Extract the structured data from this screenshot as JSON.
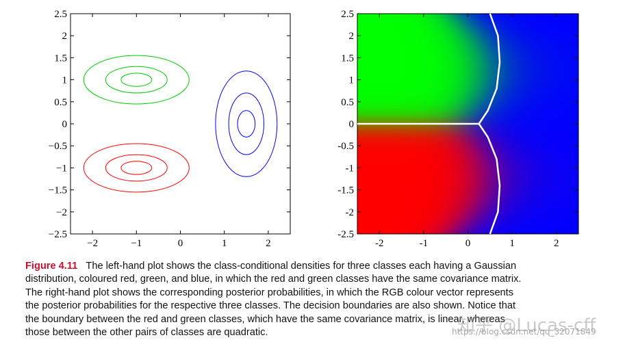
{
  "chart_data": [
    {
      "type": "contour",
      "xlim": [
        -2.5,
        2.5
      ],
      "ylim": [
        -2.5,
        2.5
      ],
      "xticks": [
        -2,
        -1,
        0,
        1,
        2
      ],
      "xtick_labels": [
        "−2",
        "−1",
        "0",
        "1",
        "2"
      ],
      "yticks": [
        2.5,
        2,
        1.5,
        1,
        0.5,
        0,
        -0.5,
        -1,
        -1.5,
        -2,
        -2.5
      ],
      "ytick_labels": [
        "2.5",
        "2",
        "1.5",
        "1",
        "0.5",
        "0",
        "−0.5",
        "−1",
        "−1.5",
        "−2",
        "−2.5"
      ],
      "series": [
        {
          "color": "#00cc00",
          "center": [
            -1.0,
            1.0
          ],
          "semi_axes": [
            [
              0.35,
              0.15
            ],
            [
              0.7,
              0.3
            ],
            [
              1.2,
              0.55
            ]
          ]
        },
        {
          "color": "#ff0000",
          "center": [
            -1.0,
            -1.0
          ],
          "semi_axes": [
            [
              0.35,
              0.15
            ],
            [
              0.7,
              0.3
            ],
            [
              1.2,
              0.55
            ]
          ]
        },
        {
          "color": "#0000ff",
          "center": [
            1.5,
            0.0
          ],
          "semi_axes": [
            [
              0.2,
              0.3
            ],
            [
              0.4,
              0.7
            ],
            [
              0.7,
              1.2
            ]
          ]
        }
      ]
    },
    {
      "type": "heatmap",
      "xlim": [
        -2.5,
        2.5
      ],
      "ylim": [
        -2.5,
        2.5
      ],
      "xticks": [
        -2,
        -1,
        0,
        1,
        2
      ],
      "xtick_labels": [
        "-2",
        "-1",
        "0",
        "1",
        "2"
      ],
      "yticks": [
        2.5,
        2,
        1.5,
        1,
        0.5,
        0,
        -0.5,
        -1,
        -1.5,
        -2,
        -2.5
      ],
      "ytick_labels": [
        "2.5",
        "2",
        "1.5",
        "1",
        "0.5",
        "0",
        "-0.5",
        "-1",
        "-1.5",
        "-2",
        "-2.5"
      ],
      "colors": {
        "red": "#ff0000",
        "green": "#00ff00",
        "blue": "#0000ff",
        "boundary": "#ffffff"
      },
      "boundary": {
        "red_green": [
          [
            -2.5,
            0.0
          ],
          [
            0.25,
            0.0
          ]
        ],
        "upper": [
          [
            0.25,
            0.0
          ],
          [
            0.45,
            0.3
          ],
          [
            0.65,
            0.8
          ],
          [
            0.72,
            1.4
          ],
          [
            0.68,
            2.0
          ],
          [
            0.5,
            2.5
          ]
        ],
        "lower": [
          [
            0.25,
            0.0
          ],
          [
            0.45,
            -0.3
          ],
          [
            0.65,
            -0.8
          ],
          [
            0.72,
            -1.4
          ],
          [
            0.68,
            -2.0
          ],
          [
            0.5,
            -2.5
          ]
        ]
      }
    }
  ],
  "caption": {
    "label": "Figure 4.11",
    "lines": [
      "The left-hand plot shows the class-conditional densities for three classes each having a Gaussian",
      "distribution, coloured red, green, and blue, in which the red and green classes have the same covariance matrix.",
      "The right-hand plot shows the corresponding posterior probabilities, in which the RGB colour vector represents",
      "the posterior probabilities for the respective three classes. The decision boundaries are also shown. Notice that",
      "the boundary between the red and green classes, which have the same covariance matrix, is linear, whereas",
      "those between the other pairs of classes are quadratic."
    ]
  },
  "watermark": {
    "text": "知乎 @Lucas-cff",
    "url": "https://blog.csdn.net/qq_32071849"
  }
}
